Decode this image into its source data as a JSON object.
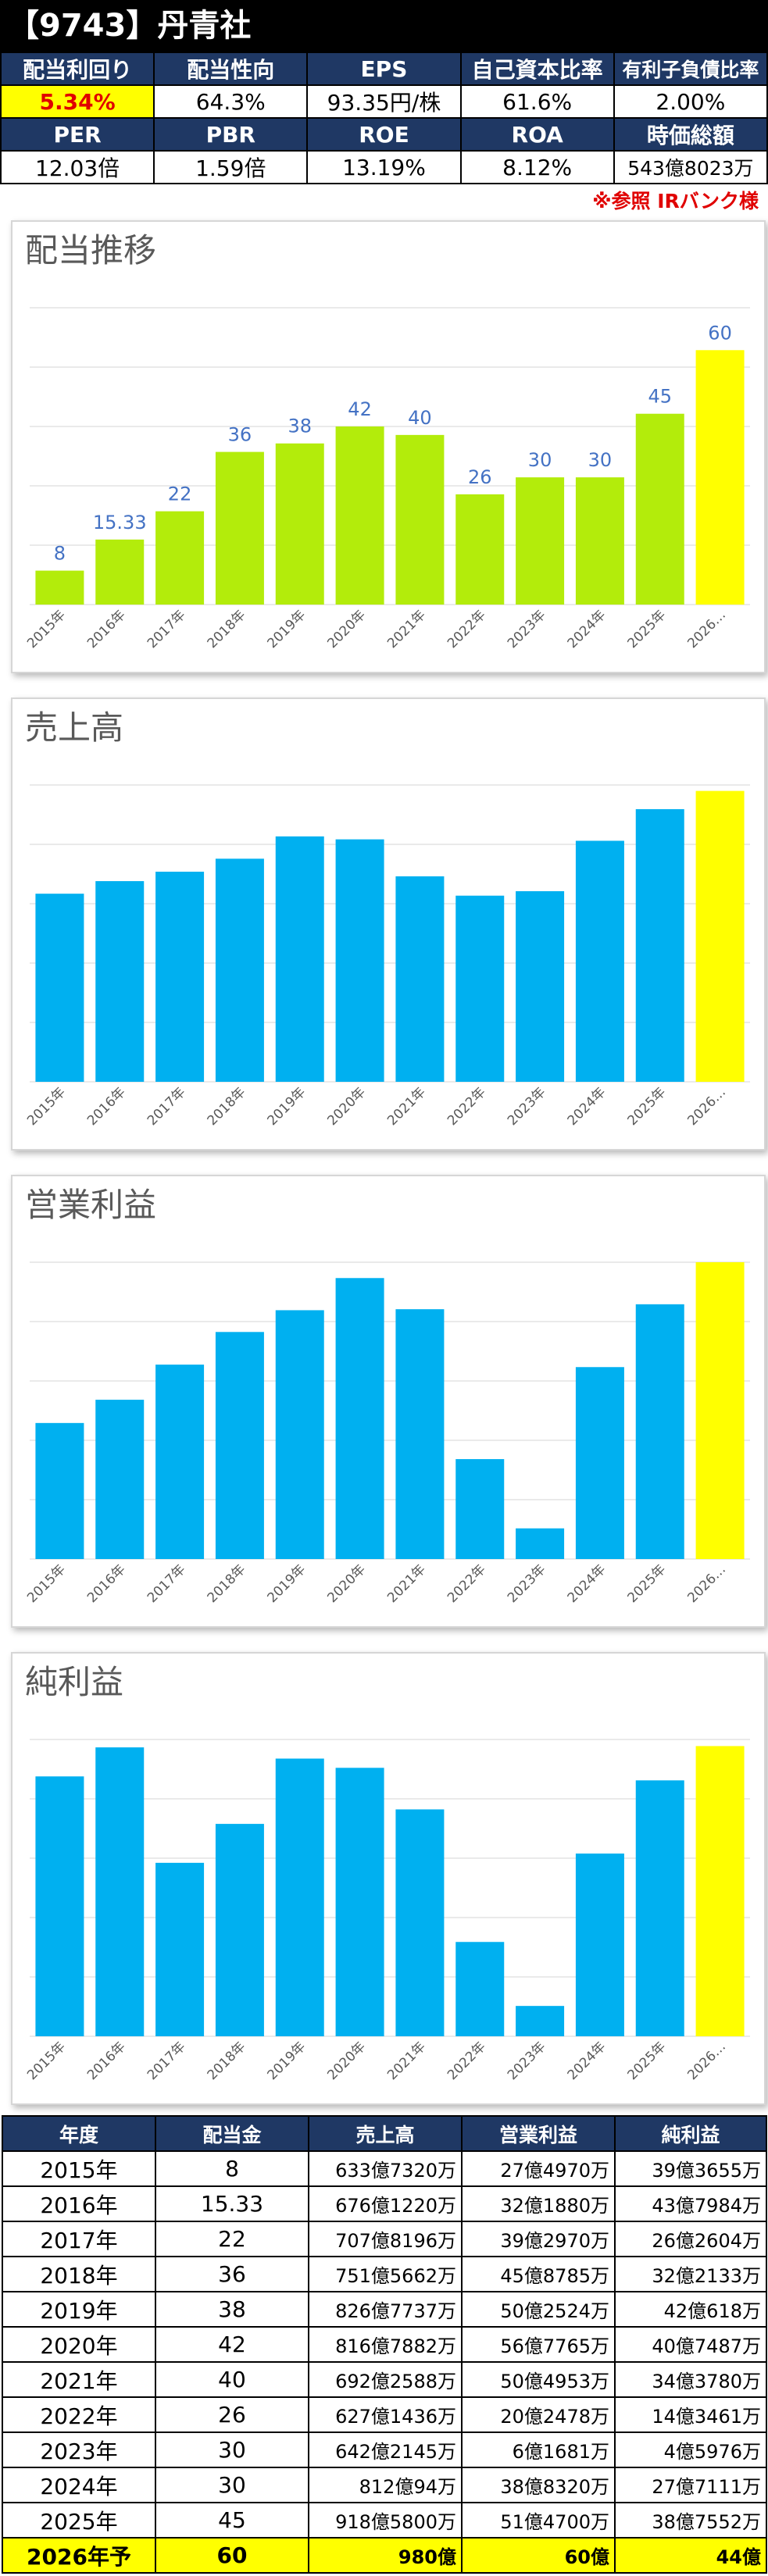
{
  "header": {
    "title": "【9743】丹青社"
  },
  "metrics": {
    "row1": [
      {
        "label": "配当利回り",
        "value": "5.34%"
      },
      {
        "label": "配当性向",
        "value": "64.3%"
      },
      {
        "label": "EPS",
        "value": "93.35円/株"
      },
      {
        "label": "自己資本比率",
        "value": "61.6%"
      },
      {
        "label": "有利子負債比率",
        "value": "2.00%"
      }
    ],
    "row2": [
      {
        "label": "PER",
        "value": "12.03倍"
      },
      {
        "label": "PBR",
        "value": "1.59倍"
      },
      {
        "label": "ROE",
        "value": "13.19%"
      },
      {
        "label": "ROA",
        "value": "8.12%"
      },
      {
        "label": "時価総額",
        "value": "543億8023万"
      }
    ],
    "note": "※参照  IRバンク様"
  },
  "colors": {
    "green": "#b3ec0b",
    "blue": "#00b0f0",
    "yellow": "#ffff00",
    "header": "#1f3864",
    "label": "#4472c4",
    "accent_red": "#e00000"
  },
  "chart_data": [
    {
      "type": "bar",
      "title": "配当推移",
      "categories": [
        "2015年",
        "2016年",
        "2017年",
        "2018年",
        "2019年",
        "2020年",
        "2021年",
        "2022年",
        "2023年",
        "2024年",
        "2025年",
        "2026…"
      ],
      "values": [
        8,
        15.33,
        22,
        36,
        38,
        42,
        40,
        26,
        30,
        30,
        45,
        60
      ],
      "labels": [
        "8",
        "15.33",
        "22",
        "36",
        "38",
        "42",
        "40",
        "26",
        "30",
        "30",
        "45",
        "60"
      ],
      "ylim": [
        0,
        70
      ],
      "grid": true,
      "highlight_last": true
    },
    {
      "type": "bar",
      "title": "売上高",
      "unit": "億円",
      "categories": [
        "2015年",
        "2016年",
        "2017年",
        "2018年",
        "2019年",
        "2020年",
        "2021年",
        "2022年",
        "2023年",
        "2024年",
        "2025年",
        "2026…"
      ],
      "values": [
        633.7,
        676.1,
        707.8,
        751.6,
        826.8,
        816.8,
        692.3,
        627.1,
        642.2,
        812.0,
        918.6,
        980
      ],
      "ylim": [
        0,
        1000
      ],
      "grid": true,
      "highlight_last": true
    },
    {
      "type": "bar",
      "title": "営業利益",
      "unit": "億円",
      "categories": [
        "2015年",
        "2016年",
        "2017年",
        "2018年",
        "2019年",
        "2020年",
        "2021年",
        "2022年",
        "2023年",
        "2024年",
        "2025年",
        "2026…"
      ],
      "values": [
        27.5,
        32.2,
        39.3,
        45.9,
        50.3,
        56.8,
        50.5,
        20.2,
        6.2,
        38.8,
        51.5,
        60
      ],
      "ylim": [
        0,
        60
      ],
      "grid": true,
      "highlight_last": true
    },
    {
      "type": "bar",
      "title": "純利益",
      "unit": "億円",
      "categories": [
        "2015年",
        "2016年",
        "2017年",
        "2018年",
        "2019年",
        "2020年",
        "2021年",
        "2022年",
        "2023年",
        "2024年",
        "2025年",
        "2026…"
      ],
      "values": [
        39.4,
        43.8,
        26.3,
        32.2,
        42.1,
        40.7,
        34.4,
        14.3,
        4.6,
        27.7,
        38.8,
        44
      ],
      "ylim": [
        0,
        45
      ],
      "grid": true,
      "highlight_last": true
    }
  ],
  "table": {
    "headers": [
      "年度",
      "配当金",
      "売上高",
      "営業利益",
      "純利益"
    ],
    "rows": [
      [
        "2015年",
        "8",
        "633億7320万",
        "27億4970万",
        "39億3655万"
      ],
      [
        "2016年",
        "15.33",
        "676億1220万",
        "32億1880万",
        "43億7984万"
      ],
      [
        "2017年",
        "22",
        "707億8196万",
        "39億2970万",
        "26億2604万"
      ],
      [
        "2018年",
        "36",
        "751億5662万",
        "45億8785万",
        "32億2133万"
      ],
      [
        "2019年",
        "38",
        "826億7737万",
        "50億2524万",
        "42億618万"
      ],
      [
        "2020年",
        "42",
        "816億7882万",
        "56億7765万",
        "40億7487万"
      ],
      [
        "2021年",
        "40",
        "692億2588万",
        "50億4953万",
        "34億3780万"
      ],
      [
        "2022年",
        "26",
        "627億1436万",
        "20億2478万",
        "14億3461万"
      ],
      [
        "2023年",
        "30",
        "642億2145万",
        "6億1681万",
        "4億5976万"
      ],
      [
        "2024年",
        "30",
        "812億94万",
        "38億8320万",
        "27億7111万"
      ],
      [
        "2025年",
        "45",
        "918億5800万",
        "51億4700万",
        "38億7552万"
      ],
      [
        "2026年予",
        "60",
        "980億",
        "60億",
        "44億"
      ]
    ]
  }
}
